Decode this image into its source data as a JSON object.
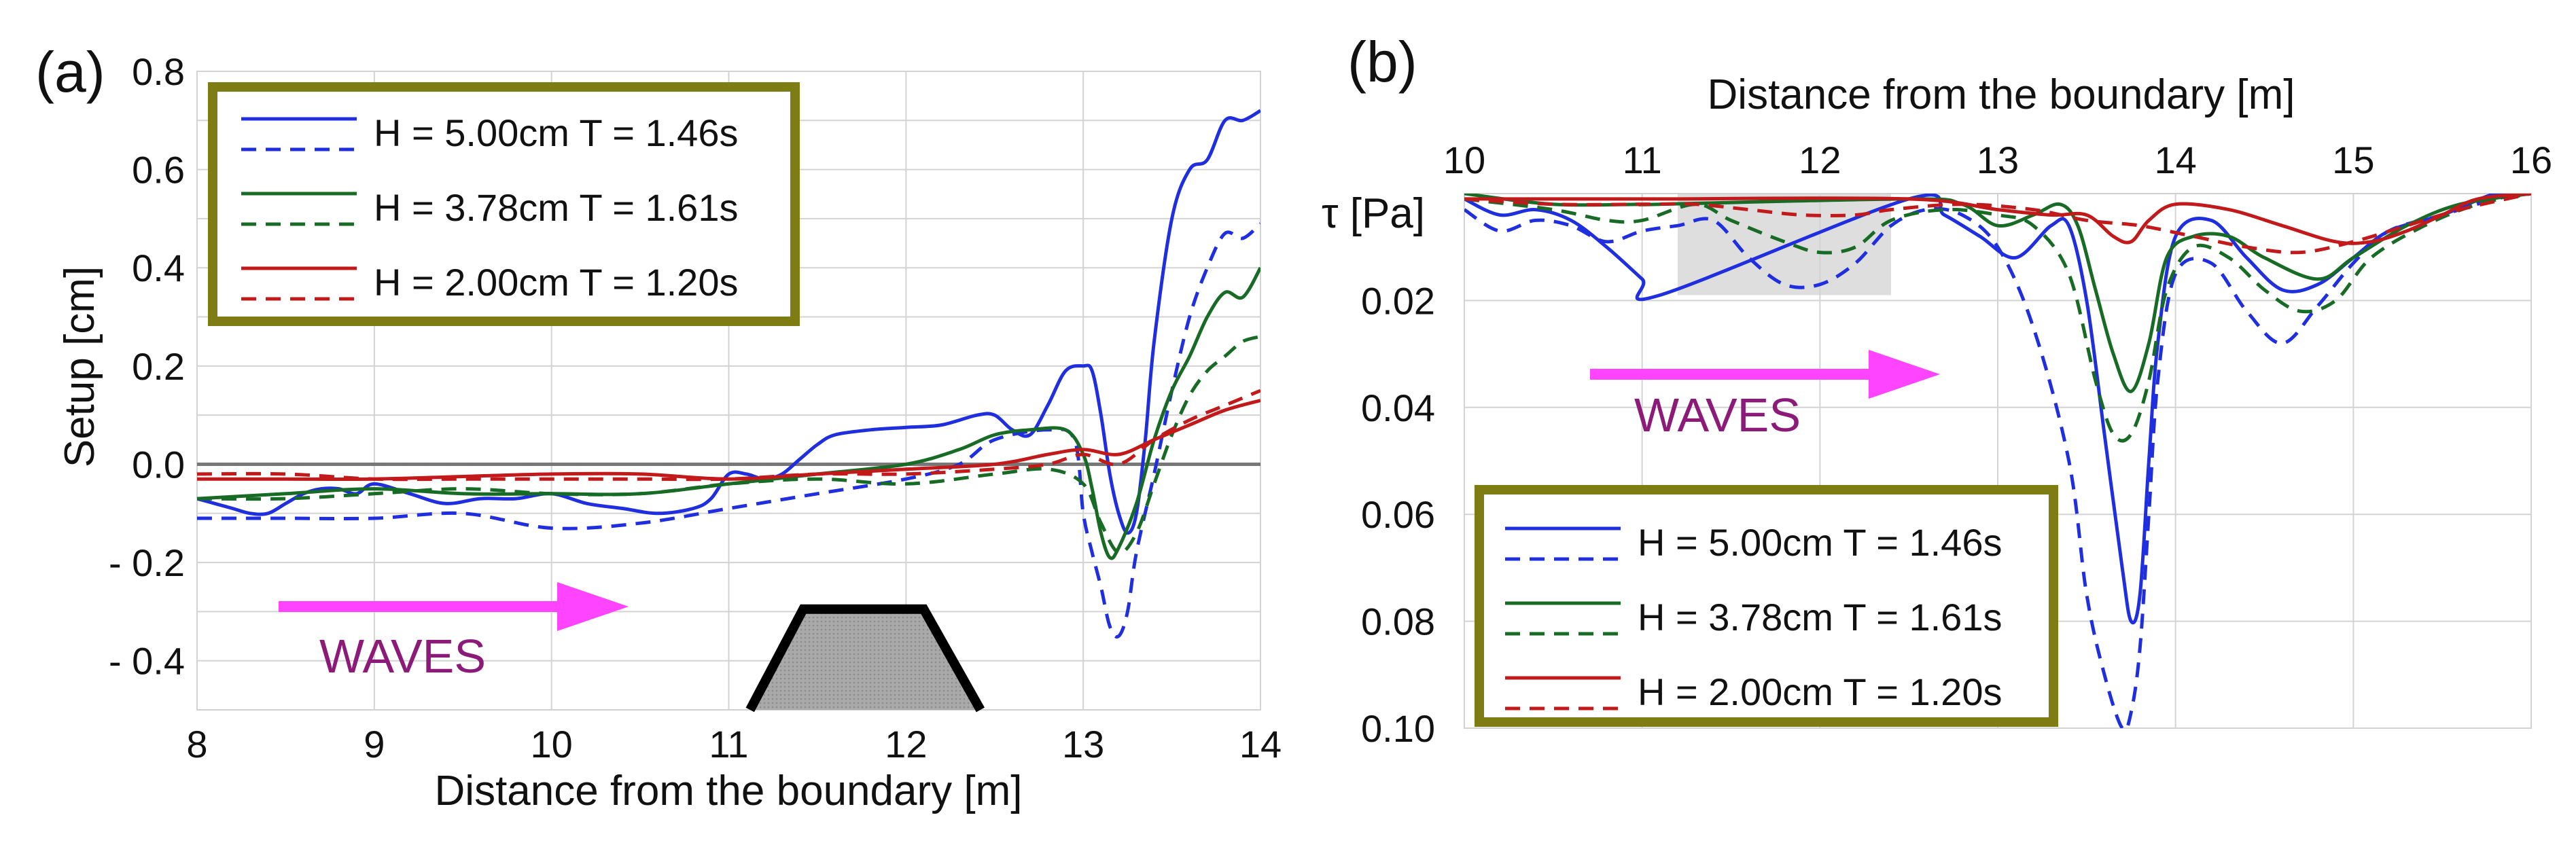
{
  "panels": [
    {
      "label": "(a)",
      "chart_data": {
        "type": "line",
        "title": "",
        "xlabel": "Distance from the boundary [m]",
        "ylabel": "Setup [cm]",
        "xlim": [
          8,
          14
        ],
        "ylim": [
          -0.5,
          0.8
        ],
        "xticks": [
          8,
          9,
          10,
          11,
          12,
          13,
          14
        ],
        "yticks": [
          -0.4,
          -0.2,
          0.0,
          0.2,
          0.4,
          0.6,
          0.8
        ],
        "ytick_labels": [
          "- 0.4",
          "- 0.2",
          "0.0",
          "0.2",
          "0.4",
          "0.6",
          "0.8"
        ],
        "grid": true,
        "legend_position": "top-left",
        "legend": [
          "H = 5.00cm T = 1.46s",
          "H = 3.78cm T = 1.61s",
          "H = 2.00cm T = 1.20s"
        ],
        "annotation": "WAVES",
        "structure": "trapezoid breakwater between 11.2 m and 12.3 m",
        "reference_line_y": 0.0,
        "series": [
          {
            "name": "H = 5.00cm T = 1.46s",
            "style": "solid",
            "color": "#1f2fe0",
            "x": [
              8,
              8.1,
              8.2,
              8.3,
              8.4,
              8.5,
              8.6,
              8.7,
              8.8,
              8.9,
              9.0,
              9.2,
              9.4,
              9.6,
              9.8,
              10.0,
              10.2,
              10.4,
              10.6,
              10.8,
              10.9,
              11.0,
              11.1,
              11.2,
              11.3,
              11.4,
              11.5,
              11.6,
              11.8,
              12.0,
              12.2,
              12.4,
              12.5,
              12.6,
              12.7,
              12.8,
              12.9,
              13.0,
              13.05,
              13.1,
              13.15,
              13.2,
              13.25,
              13.3,
              13.35,
              13.4,
              13.5,
              13.6,
              13.7,
              13.8,
              13.9,
              14.0
            ],
            "y": [
              -0.07,
              -0.08,
              -0.09,
              -0.1,
              -0.1,
              -0.08,
              -0.06,
              -0.05,
              -0.05,
              -0.06,
              -0.04,
              -0.06,
              -0.08,
              -0.07,
              -0.07,
              -0.06,
              -0.08,
              -0.09,
              -0.1,
              -0.09,
              -0.07,
              -0.02,
              -0.02,
              -0.03,
              -0.02,
              0.01,
              0.04,
              0.06,
              0.07,
              0.075,
              0.08,
              0.1,
              0.1,
              0.07,
              0.06,
              0.12,
              0.19,
              0.2,
              0.19,
              0.1,
              -0.02,
              -0.1,
              -0.14,
              -0.1,
              0.05,
              0.25,
              0.5,
              0.6,
              0.62,
              0.7,
              0.7,
              0.72
            ]
          },
          {
            "name": "H = 5.00cm T = 1.46s",
            "style": "dashed",
            "color": "#1f2fe0",
            "x": [
              8,
              8.5,
              9.0,
              9.5,
              10.0,
              10.5,
              11.0,
              11.5,
              12.0,
              12.3,
              12.5,
              12.8,
              12.95,
              13.0,
              13.05,
              13.1,
              13.15,
              13.2,
              13.25,
              13.3,
              13.4,
              13.5,
              13.6,
              13.7,
              13.8,
              13.9,
              14.0
            ],
            "y": [
              -0.11,
              -0.11,
              -0.11,
              -0.1,
              -0.13,
              -0.12,
              -0.09,
              -0.06,
              -0.03,
              0.0,
              0.05,
              0.07,
              0.05,
              -0.1,
              -0.18,
              -0.25,
              -0.33,
              -0.35,
              -0.3,
              -0.18,
              -0.02,
              0.15,
              0.3,
              0.4,
              0.47,
              0.46,
              0.49
            ]
          },
          {
            "name": "H = 3.78cm T = 1.61s",
            "style": "solid",
            "color": "#176b25",
            "x": [
              8,
              8.5,
              9.0,
              9.5,
              10.0,
              10.5,
              11.0,
              11.5,
              12.0,
              12.3,
              12.5,
              12.7,
              12.9,
              13.0,
              13.05,
              13.1,
              13.15,
              13.2,
              13.3,
              13.4,
              13.5,
              13.6,
              13.7,
              13.8,
              13.9,
              14.0
            ],
            "y": [
              -0.07,
              -0.06,
              -0.05,
              -0.06,
              -0.06,
              -0.06,
              -0.04,
              -0.02,
              0.0,
              0.03,
              0.06,
              0.07,
              0.07,
              0.02,
              -0.05,
              -0.14,
              -0.19,
              -0.17,
              -0.08,
              0.05,
              0.15,
              0.22,
              0.3,
              0.35,
              0.34,
              0.4
            ]
          },
          {
            "name": "H = 3.78cm T = 1.61s",
            "style": "dashed",
            "color": "#176b25",
            "x": [
              8,
              8.5,
              9.0,
              9.5,
              10.0,
              10.5,
              11.0,
              11.5,
              12.0,
              12.5,
              12.8,
              13.0,
              13.1,
              13.2,
              13.3,
              13.4,
              13.5,
              13.6,
              13.7,
              13.8,
              13.9,
              14.0
            ],
            "y": [
              -0.07,
              -0.07,
              -0.06,
              -0.05,
              -0.06,
              -0.06,
              -0.04,
              -0.03,
              -0.04,
              -0.02,
              -0.01,
              -0.04,
              -0.12,
              -0.18,
              -0.14,
              -0.04,
              0.06,
              0.14,
              0.19,
              0.22,
              0.25,
              0.26
            ]
          },
          {
            "name": "H = 2.00cm T = 1.20s",
            "style": "solid",
            "color": "#c21a1a",
            "x": [
              8,
              8.5,
              9.0,
              9.5,
              10.0,
              10.5,
              11.0,
              11.5,
              12.0,
              12.5,
              12.8,
              13.0,
              13.2,
              13.4,
              13.6,
              13.8,
              14.0
            ],
            "y": [
              -0.03,
              -0.03,
              -0.03,
              -0.025,
              -0.02,
              -0.02,
              -0.03,
              -0.02,
              -0.01,
              0.0,
              0.02,
              0.03,
              0.02,
              0.05,
              0.08,
              0.11,
              0.13
            ]
          },
          {
            "name": "H = 2.00cm T = 1.20s",
            "style": "dashed",
            "color": "#c21a1a",
            "x": [
              8,
              8.5,
              9.0,
              9.5,
              10.0,
              10.5,
              11.0,
              11.5,
              12.0,
              12.5,
              12.8,
              13.0,
              13.2,
              13.4,
              13.6,
              13.8,
              14.0
            ],
            "y": [
              -0.02,
              -0.02,
              -0.03,
              -0.03,
              -0.03,
              -0.03,
              -0.03,
              -0.02,
              -0.02,
              -0.01,
              0.0,
              0.02,
              0.0,
              0.05,
              0.09,
              0.12,
              0.15
            ]
          }
        ]
      }
    },
    {
      "label": "(b)",
      "chart_data": {
        "type": "line",
        "title": "",
        "xlabel": "Distance from the boundary [m]",
        "ylabel": "τ [Pa]",
        "xlim": [
          10,
          16
        ],
        "ylim": [
          0.1,
          0.0
        ],
        "y_inverted": true,
        "xaxis_position": "top",
        "xticks": [
          10,
          11,
          12,
          13,
          14,
          15,
          16
        ],
        "yticks": [
          0.02,
          0.04,
          0.06,
          0.08,
          0.1
        ],
        "ytick_labels": [
          "0.02",
          "0.04",
          "0.06",
          "0.08",
          "0.10"
        ],
        "grid": true,
        "legend_position": "bottom-left",
        "legend": [
          "H = 5.00cm T = 1.46s",
          "H = 3.78cm T = 1.61s",
          "H = 2.00cm T = 1.20s"
        ],
        "annotation": "WAVES",
        "structure": "shaded breakwater zone between 11.2 m and 12.4 m",
        "series": [
          {
            "name": "H = 5.00cm T = 1.46s",
            "style": "solid",
            "color": "#1f2fe0",
            "x": [
              10,
              10.2,
              10.4,
              10.6,
              10.8,
              11.0,
              11.1,
              12.5,
              12.7,
              12.9,
              13.1,
              13.3,
              13.4,
              13.5,
              13.6,
              13.7,
              13.75,
              13.8,
              13.85,
              13.9,
              14.0,
              14.2,
              14.4,
              14.6,
              14.8,
              15.0,
              15.2,
              15.5,
              15.8,
              16.0
            ],
            "y": [
              0.001,
              0.004,
              0.003,
              0.005,
              0.01,
              0.016,
              0.019,
              0.001,
              0.004,
              0.008,
              0.012,
              0.006,
              0.006,
              0.02,
              0.045,
              0.07,
              0.08,
              0.075,
              0.05,
              0.028,
              0.008,
              0.005,
              0.012,
              0.018,
              0.017,
              0.012,
              0.007,
              0.004,
              0.0,
              0.0
            ]
          },
          {
            "name": "H = 5.00cm T = 1.46s",
            "style": "dashed",
            "color": "#1f2fe0",
            "x": [
              10,
              10.2,
              10.4,
              10.6,
              10.8,
              11.0,
              11.2,
              11.4,
              11.6,
              11.8,
              12.0,
              12.2,
              12.4,
              12.6,
              12.8,
              13.0,
              13.2,
              13.4,
              13.5,
              13.6,
              13.7,
              13.75,
              13.8,
              13.85,
              13.9,
              14.0,
              14.2,
              14.4,
              14.6,
              14.8,
              15.0,
              15.2,
              15.5,
              15.8,
              16.0
            ],
            "y": [
              0.003,
              0.007,
              0.005,
              0.006,
              0.009,
              0.007,
              0.006,
              0.005,
              0.012,
              0.017,
              0.017,
              0.013,
              0.006,
              0.003,
              0.004,
              0.01,
              0.025,
              0.05,
              0.075,
              0.09,
              0.1,
              0.097,
              0.085,
              0.06,
              0.035,
              0.015,
              0.013,
              0.022,
              0.028,
              0.021,
              0.013,
              0.007,
              0.004,
              0.001,
              0.0
            ]
          },
          {
            "name": "H = 3.78cm T = 1.61s",
            "style": "solid",
            "color": "#176b25",
            "x": [
              10,
              10.5,
              11.0,
              11.1,
              12.5,
              12.8,
              13.0,
              13.2,
              13.35,
              13.45,
              13.55,
              13.65,
              13.75,
              13.85,
              13.95,
              14.1,
              14.3,
              14.5,
              14.8,
              15.0,
              15.3,
              15.6,
              16.0
            ],
            "y": [
              0.0,
              0.002,
              0.002,
              0.002,
              0.001,
              0.002,
              0.006,
              0.004,
              0.002,
              0.006,
              0.018,
              0.03,
              0.037,
              0.028,
              0.012,
              0.008,
              0.008,
              0.012,
              0.016,
              0.012,
              0.006,
              0.002,
              0.0
            ]
          },
          {
            "name": "H = 3.78cm T = 1.61s",
            "style": "dashed",
            "color": "#176b25",
            "x": [
              10,
              10.5,
              10.8,
              11.0,
              11.3,
              11.5,
              11.8,
              12.0,
              12.2,
              12.4,
              12.7,
              13.0,
              13.2,
              13.4,
              13.55,
              13.65,
              13.75,
              13.85,
              13.95,
              14.1,
              14.3,
              14.5,
              14.7,
              14.9,
              15.1,
              15.4,
              15.7,
              16.0
            ],
            "y": [
              0.001,
              0.003,
              0.005,
              0.005,
              0.002,
              0.005,
              0.009,
              0.011,
              0.01,
              0.005,
              0.003,
              0.004,
              0.006,
              0.015,
              0.035,
              0.045,
              0.045,
              0.035,
              0.018,
              0.01,
              0.012,
              0.018,
              0.022,
              0.02,
              0.012,
              0.006,
              0.002,
              0.0
            ]
          },
          {
            "name": "H = 2.00cm T = 1.20s",
            "style": "solid",
            "color": "#c21a1a",
            "x": [
              10,
              10.5,
              11.0,
              11.1,
              12.5,
              13.0,
              13.3,
              13.5,
              13.65,
              13.75,
              13.85,
              14.0,
              14.3,
              14.6,
              14.9,
              15.1,
              15.3,
              15.5,
              15.7,
              16.0
            ],
            "y": [
              0.001,
              0.001,
              0.001,
              0.001,
              0.001,
              0.003,
              0.004,
              0.004,
              0.008,
              0.009,
              0.005,
              0.002,
              0.003,
              0.006,
              0.009,
              0.009,
              0.007,
              0.004,
              0.001,
              0.0
            ]
          },
          {
            "name": "H = 2.00cm T = 1.20s",
            "style": "dashed",
            "color": "#c21a1a",
            "x": [
              10,
              10.5,
              11.0,
              11.3,
              11.6,
              11.9,
              12.2,
              12.4,
              12.8,
              13.2,
              13.5,
              13.8,
              14.1,
              14.4,
              14.7,
              15.0,
              15.3,
              15.6,
              16.0
            ],
            "y": [
              0.001,
              0.002,
              0.002,
              0.002,
              0.003,
              0.004,
              0.004,
              0.003,
              0.002,
              0.003,
              0.005,
              0.006,
              0.008,
              0.01,
              0.011,
              0.009,
              0.006,
              0.003,
              0.0
            ]
          }
        ]
      }
    }
  ]
}
